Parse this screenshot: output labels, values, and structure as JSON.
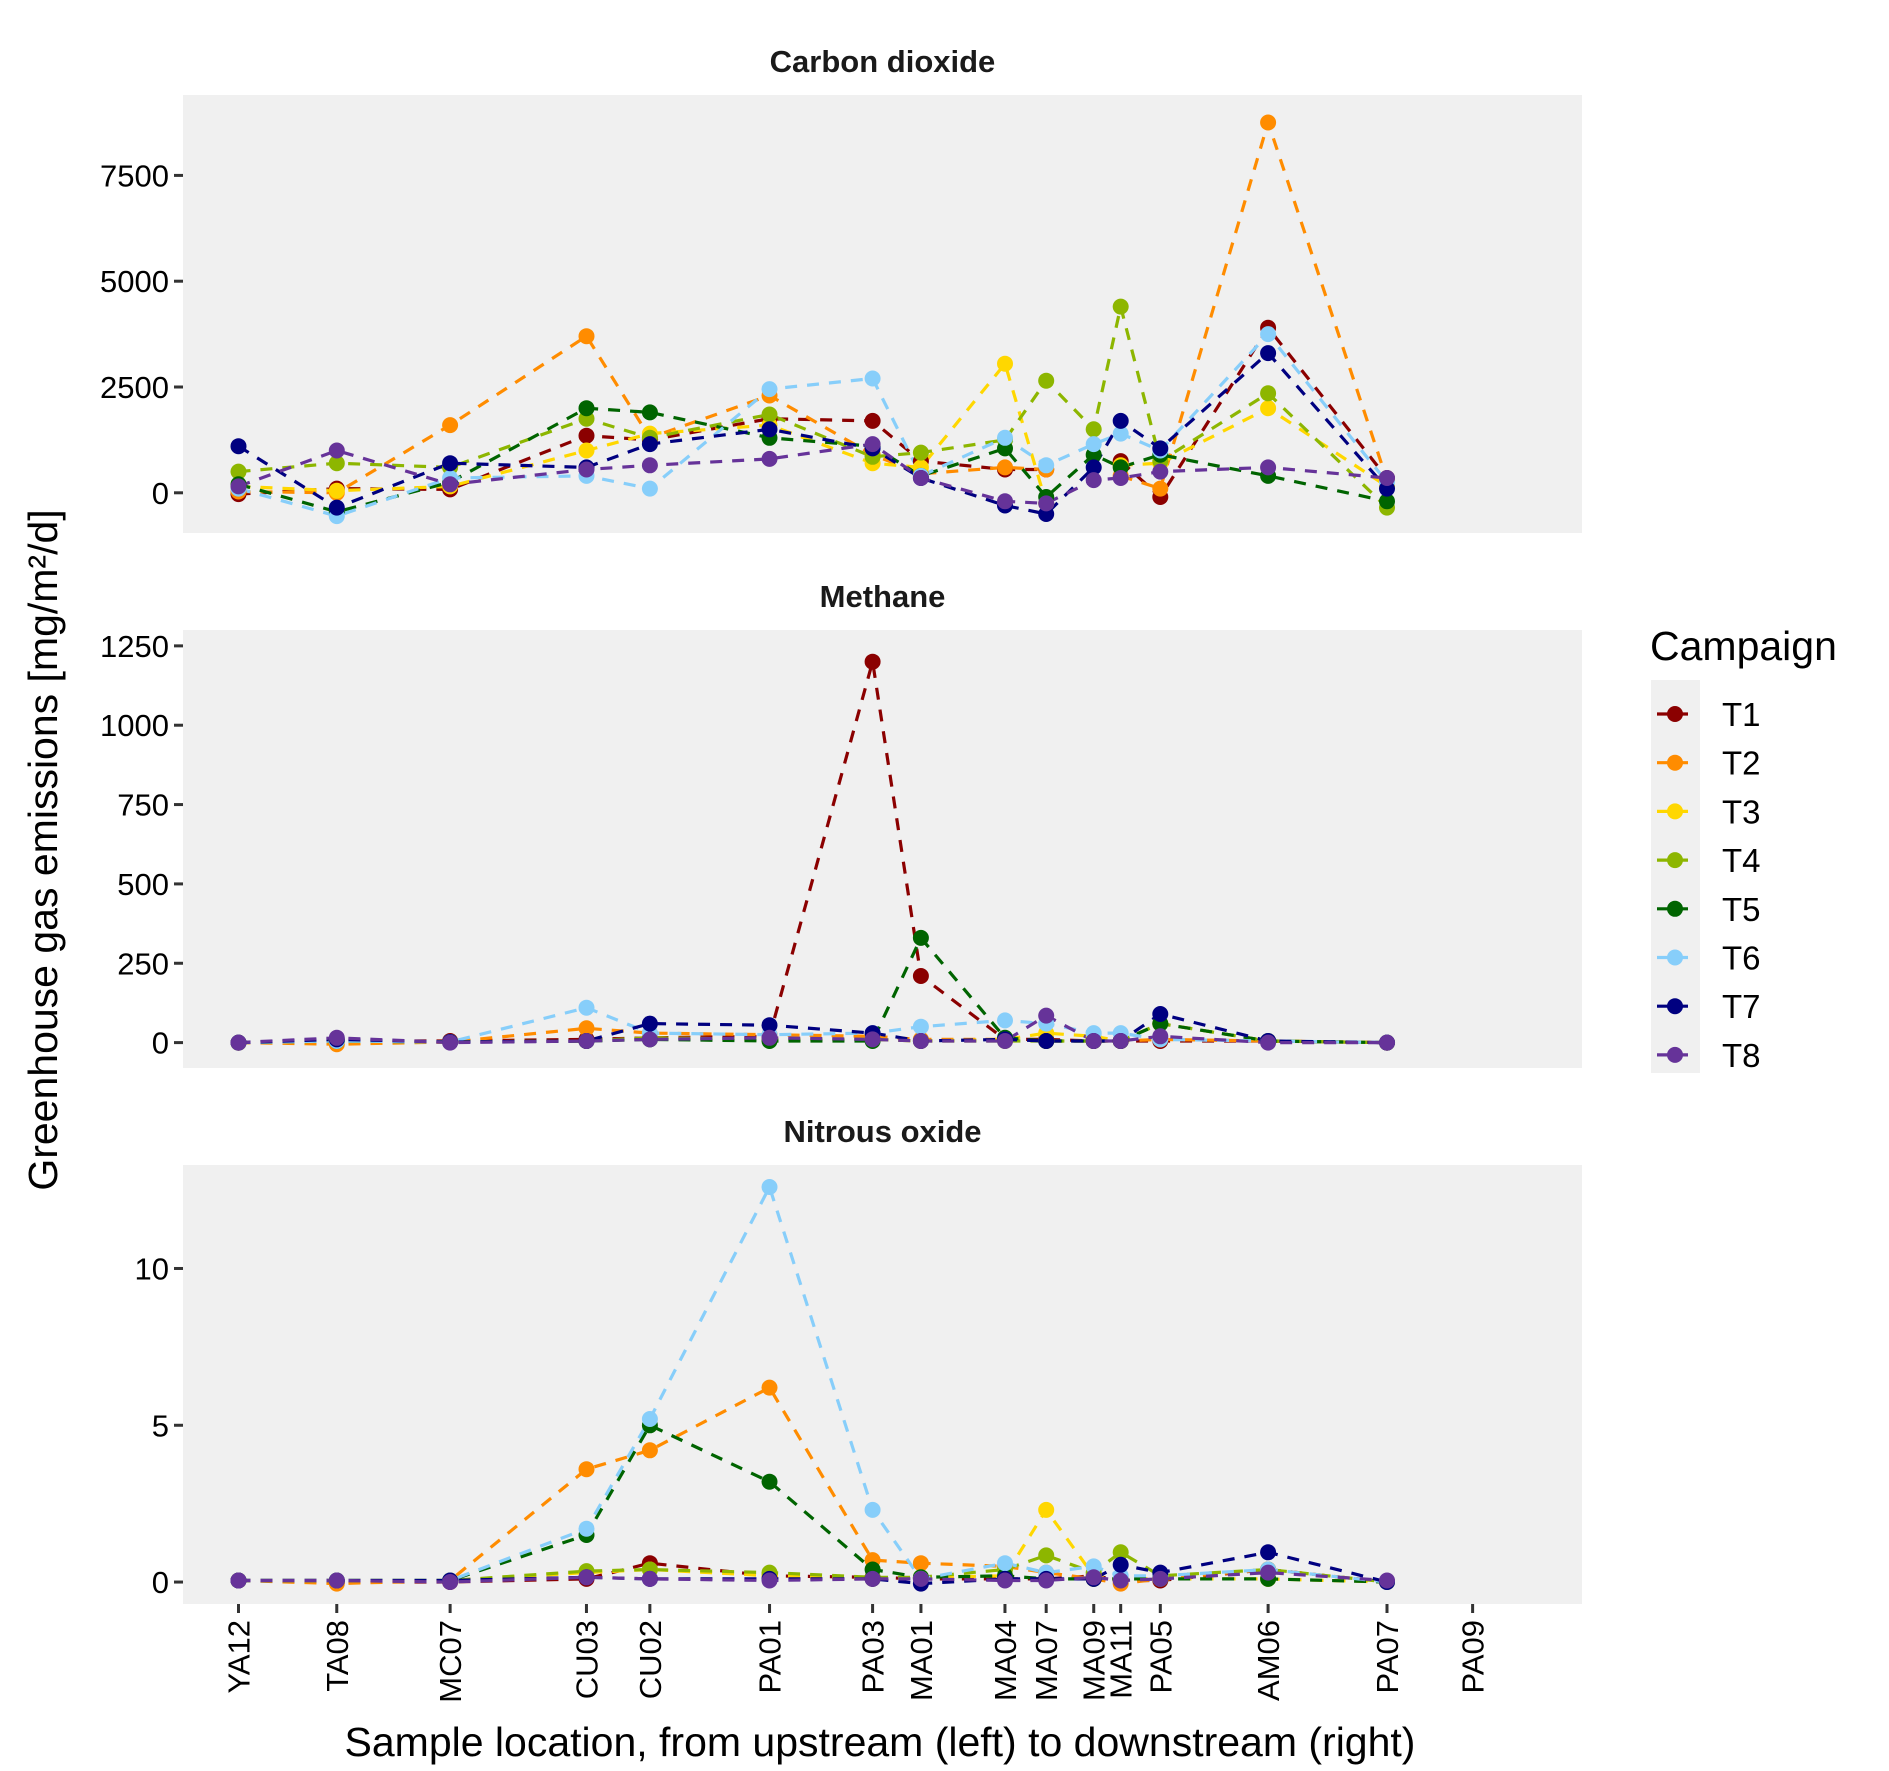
{
  "chart_data": {
    "type": "line",
    "ylabel": "Greenhouse gas emissions [mg/m²/d]",
    "xlabel": "Sample location, from upstream (left) to downstream (right)",
    "grid": false,
    "legend": {
      "title": "Campaign",
      "placement": "right"
    },
    "locations": [
      "YA12",
      "TA08",
      "MC07",
      "CU03",
      "CU02",
      "PA01",
      "PA03",
      "MA01",
      "MA04",
      "MA07",
      "MA09",
      "MA11",
      "PA05",
      "AM06",
      "PA07",
      "PA09"
    ],
    "location_positions": [
      0,
      1.24,
      2.67,
      4.39,
      5.19,
      6.7,
      8.0,
      8.61,
      9.67,
      10.19,
      10.79,
      11.13,
      11.63,
      12.99,
      14.49,
      15.57
    ],
    "campaigns": [
      {
        "name": "T1",
        "color": "#8B0000"
      },
      {
        "name": "T2",
        "color": "#FF8C00"
      },
      {
        "name": "T3",
        "color": "#FFD700"
      },
      {
        "name": "T4",
        "color": "#8DB600"
      },
      {
        "name": "T5",
        "color": "#006400"
      },
      {
        "name": "T6",
        "color": "#87CEFA"
      },
      {
        "name": "T7",
        "color": "#000080"
      },
      {
        "name": "T8",
        "color": "#663399"
      }
    ],
    "panels": [
      {
        "title": "Carbon dioxide",
        "ylim": [
          -950,
          9400
        ],
        "yticks": [
          0,
          2500,
          5000,
          7500
        ],
        "series": [
          {
            "name": "T1",
            "values": [
              -30,
              100,
              80,
              1350,
              1250,
              1750,
              1700,
              750,
              550,
              550,
              null,
              750,
              -100,
              3900,
              350,
              null
            ]
          },
          {
            "name": "T2",
            "values": [
              30,
              0,
              1600,
              3700,
              1300,
              2300,
              900,
              450,
              600,
              550,
              null,
              400,
              100,
              8750,
              300,
              null
            ]
          },
          {
            "name": "T3",
            "values": [
              150,
              50,
              150,
              1000,
              1400,
              1600,
              700,
              600,
              3050,
              -250,
              null,
              650,
              700,
              2000,
              150,
              null
            ]
          },
          {
            "name": "T4",
            "values": [
              500,
              700,
              600,
              1750,
              1300,
              1850,
              850,
              950,
              1250,
              2650,
              1500,
              4400,
              750,
              2350,
              -350,
              null
            ]
          },
          {
            "name": "T5",
            "values": [
              200,
              -450,
              250,
              2000,
              1900,
              1300,
              1100,
              400,
              1050,
              -100,
              900,
              600,
              900,
              400,
              -200,
              null
            ]
          },
          {
            "name": "T6",
            "values": [
              100,
              -550,
              350,
              400,
              100,
              2450,
              2700,
              400,
              1300,
              650,
              1150,
              1400,
              1000,
              3750,
              250,
              null
            ]
          },
          {
            "name": "T7",
            "values": [
              1100,
              -350,
              700,
              600,
              1150,
              1500,
              1050,
              350,
              -300,
              -500,
              600,
              1700,
              1050,
              3300,
              100,
              null
            ]
          },
          {
            "name": "T8",
            "values": [
              150,
              1000,
              200,
              550,
              650,
              800,
              1150,
              350,
              -200,
              -250,
              300,
              350,
              500,
              600,
              350,
              null
            ]
          }
        ]
      },
      {
        "title": "Methane",
        "ylim": [
          -80,
          1300
        ],
        "yticks": [
          0,
          250,
          500,
          750,
          1000,
          1250
        ],
        "series": [
          {
            "name": "T1",
            "values": [
              0,
              5,
              5,
              10,
              15,
              20,
              1200,
              210,
              10,
              10,
              5,
              5,
              5,
              5,
              0,
              null
            ]
          },
          {
            "name": "T2",
            "values": [
              0,
              -5,
              2,
              45,
              30,
              25,
              20,
              10,
              10,
              5,
              5,
              5,
              10,
              5,
              0,
              null
            ]
          },
          {
            "name": "T3",
            "values": [
              0,
              5,
              2,
              5,
              15,
              10,
              10,
              5,
              10,
              30,
              20,
              5,
              60,
              5,
              0,
              null
            ]
          },
          {
            "name": "T4",
            "values": [
              0,
              5,
              2,
              5,
              15,
              10,
              10,
              5,
              5,
              5,
              5,
              5,
              60,
              5,
              0,
              null
            ]
          },
          {
            "name": "T5",
            "values": [
              0,
              5,
              2,
              5,
              10,
              5,
              5,
              330,
              15,
              5,
              5,
              5,
              60,
              5,
              0,
              null
            ]
          },
          {
            "name": "T6",
            "values": [
              0,
              5,
              2,
              110,
              30,
              25,
              30,
              50,
              70,
              60,
              30,
              30,
              10,
              5,
              0,
              null
            ]
          },
          {
            "name": "T7",
            "values": [
              0,
              10,
              2,
              5,
              60,
              55,
              30,
              5,
              10,
              5,
              5,
              5,
              90,
              5,
              0,
              null
            ]
          },
          {
            "name": "T8",
            "values": [
              0,
              15,
              0,
              5,
              10,
              15,
              10,
              5,
              5,
              85,
              5,
              5,
              20,
              0,
              0,
              null
            ]
          }
        ]
      },
      {
        "title": "Nitrous oxide",
        "ylim": [
          -0.7,
          13.3
        ],
        "yticks": [
          0,
          5,
          10
        ],
        "series": [
          {
            "name": "T1",
            "values": [
              0.05,
              0.0,
              0.0,
              0.1,
              0.6,
              0.2,
              0.15,
              0.1,
              0.1,
              0.1,
              0.2,
              0.05,
              0.05,
              0.4,
              0.0,
              null
            ]
          },
          {
            "name": "T2",
            "values": [
              0.05,
              -0.05,
              0.05,
              3.6,
              4.2,
              6.2,
              0.7,
              0.6,
              0.5,
              0.3,
              0.1,
              -0.05,
              0.1,
              0.4,
              0.0,
              null
            ]
          },
          {
            "name": "T3",
            "values": [
              0.05,
              0.05,
              0.05,
              0.3,
              0.4,
              0.2,
              0.1,
              0.15,
              0.2,
              2.3,
              0.2,
              0.1,
              0.1,
              0.1,
              0.0,
              null
            ]
          },
          {
            "name": "T4",
            "values": [
              0.05,
              0.05,
              0.05,
              0.35,
              0.4,
              0.3,
              0.15,
              0.15,
              0.4,
              0.85,
              0.3,
              0.95,
              0.2,
              0.4,
              0.0,
              null
            ]
          },
          {
            "name": "T5",
            "values": [
              0.05,
              0.05,
              0.05,
              1.5,
              5.0,
              3.2,
              0.4,
              0.15,
              0.2,
              0.1,
              0.1,
              0.1,
              0.1,
              0.1,
              0.0,
              null
            ]
          },
          {
            "name": "T6",
            "values": [
              0.05,
              0.05,
              0.05,
              1.7,
              5.2,
              12.6,
              2.3,
              0.1,
              0.6,
              0.3,
              0.5,
              0.2,
              0.2,
              0.4,
              0.0,
              null
            ]
          },
          {
            "name": "T7",
            "values": [
              0.05,
              0.05,
              0.05,
              0.15,
              0.1,
              0.1,
              0.1,
              -0.05,
              0.1,
              0.1,
              0.1,
              0.55,
              0.3,
              0.95,
              0.0,
              null
            ]
          },
          {
            "name": "T8",
            "values": [
              0.05,
              0.05,
              0.0,
              0.15,
              0.1,
              0.05,
              0.1,
              0.1,
              0.05,
              0.05,
              0.15,
              0.05,
              0.1,
              0.3,
              0.05,
              null
            ]
          }
        ]
      }
    ]
  }
}
